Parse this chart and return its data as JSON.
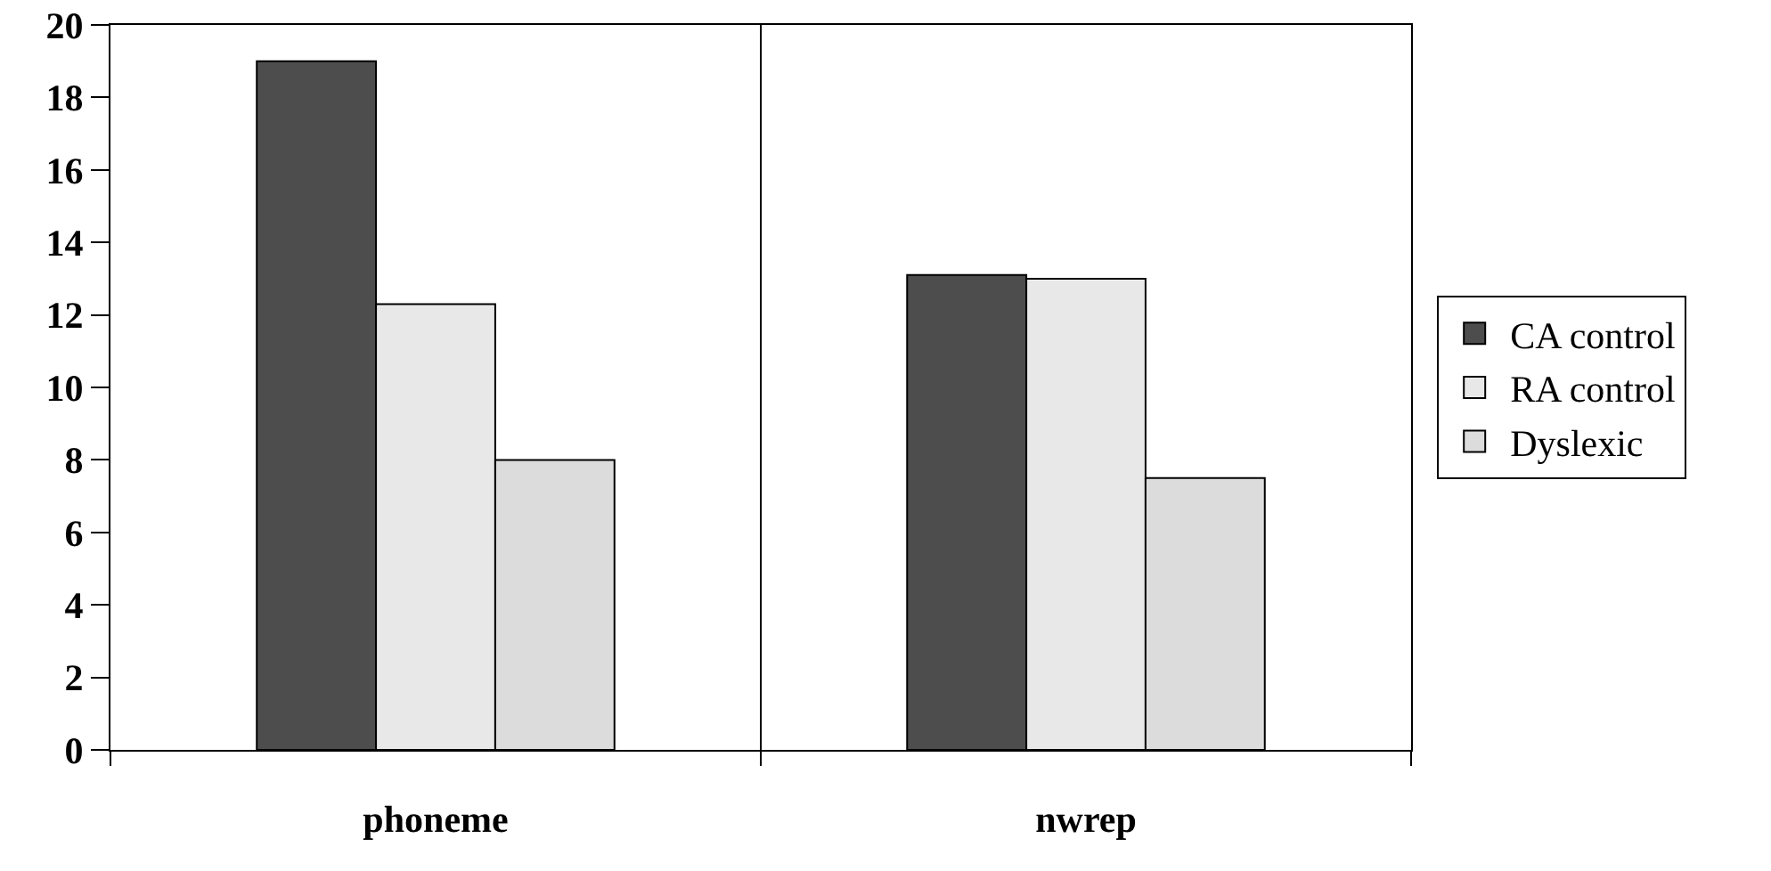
{
  "chart_data": {
    "type": "bar",
    "categories": [
      "phoneme",
      "nwrep"
    ],
    "series": [
      {
        "name": "CA control",
        "color": "#4d4d4d",
        "values": [
          19.0,
          13.1
        ]
      },
      {
        "name": "RA control",
        "color": "#e8e8e8",
        "values": [
          12.3,
          13.0
        ]
      },
      {
        "name": "Dyslexic",
        "color": "#dcdcdc",
        "values": [
          8.0,
          7.5
        ]
      }
    ],
    "ylim": [
      0,
      20
    ],
    "yticks": [
      0,
      2,
      4,
      6,
      8,
      10,
      12,
      14,
      16,
      18,
      20
    ],
    "grid": "x",
    "legend": "right"
  }
}
